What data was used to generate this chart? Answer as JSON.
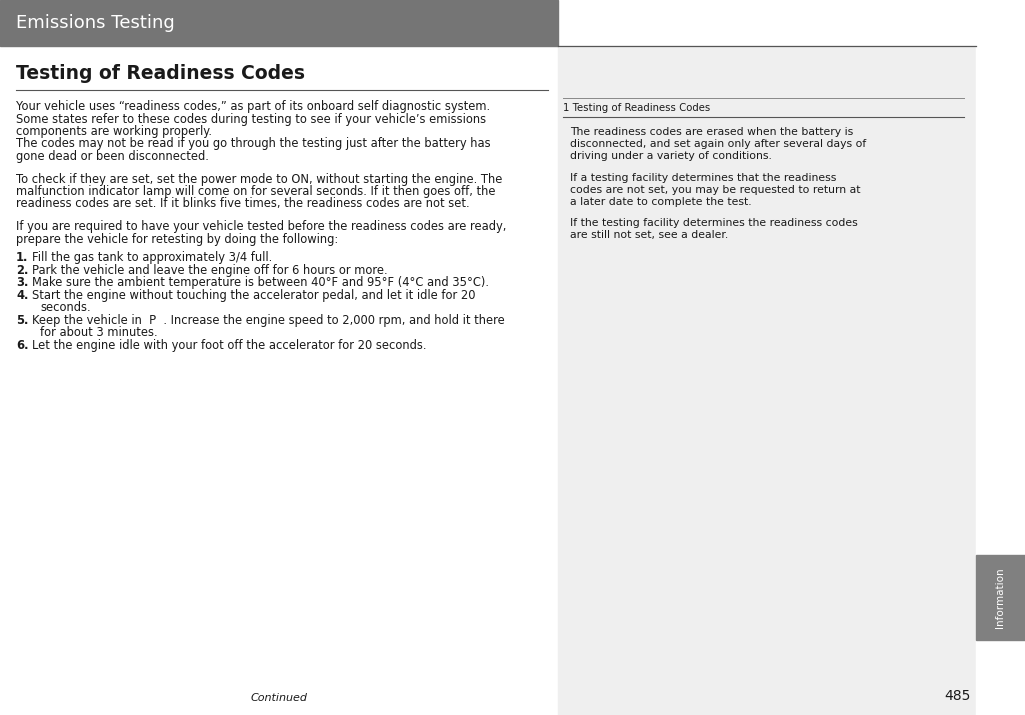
{
  "page_bg": "#ffffff",
  "header_bg": "#757575",
  "header_text": "Emissions Testing",
  "header_text_color": "#ffffff",
  "right_panel_bg": "#efefef",
  "sidebar_bg": "#808080",
  "sidebar_tab_bg": "#808080",
  "sidebar_text": "Information",
  "sidebar_text_color": "#ffffff",
  "page_number": "485",
  "continued_text": "Continued",
  "main_title": "Testing of Readiness Codes",
  "body_fontsize": 8.3,
  "body_text_color": "#1a1a1a",
  "para1_line1": "Your vehicle uses “readiness codes,” as part of its onboard self diagnostic system.",
  "para1_line2": "Some states refer to these codes during testing to see if your vehicle’s emissions",
  "para1_line3": "components are working properly.",
  "para1_line4": "The codes may not be read if you go through the testing just after the battery has",
  "para1_line5": "gone dead or been disconnected.",
  "para2_line1": "To check if they are set, set the power mode to ON, without starting the engine. The",
  "para2_line2": "malfunction indicator lamp will come on for several seconds. If it then goes off, the",
  "para2_line3": "readiness codes are set. If it blinks five times, the readiness codes are not set.",
  "para3_line1": "If you are required to have your vehicle tested before the readiness codes are ready,",
  "para3_line2": "prepare the vehicle for retesting by doing the following:",
  "list_items": [
    {
      "num": "1.",
      "text": "Fill the gas tank to approximately 3/4 full.",
      "extra": ""
    },
    {
      "num": "2.",
      "text": "Park the vehicle and leave the engine off for 6 hours or more.",
      "extra": ""
    },
    {
      "num": "3.",
      "text": "Make sure the ambient temperature is between 40°F and 95°F (4°C and 35°C).",
      "extra": ""
    },
    {
      "num": "4.",
      "text": "Start the engine without touching the accelerator pedal, and let it idle for 20",
      "extra": "   seconds."
    },
    {
      "num": "5.",
      "text": "Keep the vehicle in  P  . Increase the engine speed to 2,000 rpm, and hold it there",
      "extra": "   for about 3 minutes."
    },
    {
      "num": "6.",
      "text": "Let the engine idle with your foot off the accelerator for 20 seconds.",
      "extra": ""
    }
  ],
  "right_note_title": "1 Testing of Readiness Codes",
  "right_note_para1_l1": "The readiness codes are erased when the battery is",
  "right_note_para1_l2": "disconnected, and set again only after several days of",
  "right_note_para1_l3": "driving under a variety of conditions.",
  "right_note_para2_l1": "If a testing facility determines that the readiness",
  "right_note_para2_l2": "codes are not set, you may be requested to return at",
  "right_note_para2_l3": "a later date to complete the test.",
  "right_note_para3_l1": "If the testing facility determines the readiness codes",
  "right_note_para3_l2": "are still not set, see a dealer."
}
